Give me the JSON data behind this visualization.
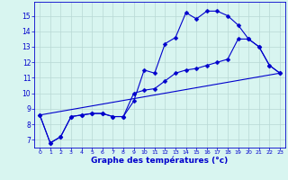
{
  "xlabel": "Graphe des températures (°c)",
  "bg_color": "#d8f5f0",
  "grid_color": "#b8d8d4",
  "line_color": "#0000cc",
  "xlim": [
    -0.5,
    23.5
  ],
  "ylim": [
    6.5,
    15.9
  ],
  "yticks": [
    7,
    8,
    9,
    10,
    11,
    12,
    13,
    14,
    15
  ],
  "xticks": [
    0,
    1,
    2,
    3,
    4,
    5,
    6,
    7,
    8,
    9,
    10,
    11,
    12,
    13,
    14,
    15,
    16,
    17,
    18,
    19,
    20,
    21,
    22,
    23
  ],
  "line1_x": [
    0,
    1,
    2,
    3,
    4,
    5,
    6,
    7,
    8,
    9,
    10,
    11,
    12,
    13,
    14,
    15,
    16,
    17,
    18,
    19,
    20,
    21,
    22,
    23
  ],
  "line1_y": [
    8.6,
    6.8,
    7.2,
    8.5,
    8.6,
    8.7,
    8.7,
    8.5,
    8.5,
    9.5,
    11.5,
    11.3,
    13.2,
    13.6,
    15.2,
    14.8,
    15.3,
    15.3,
    15.0,
    14.4,
    13.5,
    13.0,
    11.8,
    11.3
  ],
  "line2_x": [
    0,
    1,
    2,
    3,
    4,
    5,
    6,
    7,
    8,
    9,
    10,
    11,
    12,
    13,
    14,
    15,
    16,
    17,
    18,
    19,
    20,
    21,
    22,
    23
  ],
  "line2_y": [
    8.6,
    6.8,
    7.2,
    8.5,
    8.6,
    8.7,
    8.7,
    8.5,
    8.5,
    10.0,
    10.2,
    10.3,
    10.8,
    11.3,
    11.5,
    11.6,
    11.8,
    12.0,
    12.2,
    13.5,
    13.5,
    13.0,
    11.8,
    11.3
  ],
  "line3_x": [
    0,
    23
  ],
  "line3_y": [
    8.6,
    11.3
  ],
  "marker_size": 2.5
}
